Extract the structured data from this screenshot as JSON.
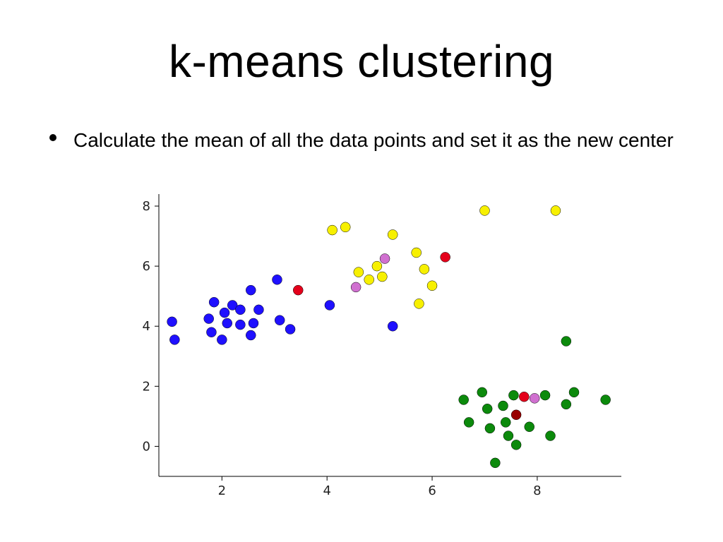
{
  "title": "k-means clustering",
  "bullet": "Calculate the mean of all the data points and set it as the new center",
  "chart": {
    "type": "scatter",
    "background_color": "#ffffff",
    "axis_color": "#000000",
    "tick_font_size": 18,
    "title_font_size": 64,
    "body_font_size": 28,
    "xlim": [
      0.8,
      9.6
    ],
    "ylim": [
      -1.0,
      8.4
    ],
    "xticks": [
      2,
      4,
      6,
      8
    ],
    "yticks": [
      0,
      2,
      4,
      6,
      8
    ],
    "marker_radius": 7,
    "marker_stroke": "#000000",
    "marker_stroke_width": 0.5,
    "colors": {
      "blue": "#1f10ff",
      "yellow": "#f7f000",
      "green": "#0c8a0c",
      "red": "#e4001b",
      "violet": "#d070d0",
      "darkred": "#990000"
    },
    "points": [
      {
        "x": 1.05,
        "y": 4.15,
        "c": "blue"
      },
      {
        "x": 1.1,
        "y": 3.55,
        "c": "blue"
      },
      {
        "x": 1.75,
        "y": 4.25,
        "c": "blue"
      },
      {
        "x": 1.8,
        "y": 3.8,
        "c": "blue"
      },
      {
        "x": 1.85,
        "y": 4.8,
        "c": "blue"
      },
      {
        "x": 2.0,
        "y": 3.55,
        "c": "blue"
      },
      {
        "x": 2.05,
        "y": 4.45,
        "c": "blue"
      },
      {
        "x": 2.1,
        "y": 4.1,
        "c": "blue"
      },
      {
        "x": 2.2,
        "y": 4.7,
        "c": "blue"
      },
      {
        "x": 2.35,
        "y": 4.05,
        "c": "blue"
      },
      {
        "x": 2.35,
        "y": 4.55,
        "c": "blue"
      },
      {
        "x": 2.55,
        "y": 3.7,
        "c": "blue"
      },
      {
        "x": 2.55,
        "y": 5.2,
        "c": "blue"
      },
      {
        "x": 2.6,
        "y": 4.1,
        "c": "blue"
      },
      {
        "x": 2.7,
        "y": 4.55,
        "c": "blue"
      },
      {
        "x": 3.05,
        "y": 5.55,
        "c": "blue"
      },
      {
        "x": 3.1,
        "y": 4.2,
        "c": "blue"
      },
      {
        "x": 3.3,
        "y": 3.9,
        "c": "blue"
      },
      {
        "x": 4.05,
        "y": 4.7,
        "c": "blue"
      },
      {
        "x": 5.25,
        "y": 4.0,
        "c": "blue"
      },
      {
        "x": 4.1,
        "y": 7.2,
        "c": "yellow"
      },
      {
        "x": 4.35,
        "y": 7.3,
        "c": "yellow"
      },
      {
        "x": 4.6,
        "y": 5.8,
        "c": "yellow"
      },
      {
        "x": 4.8,
        "y": 5.55,
        "c": "yellow"
      },
      {
        "x": 4.95,
        "y": 6.0,
        "c": "yellow"
      },
      {
        "x": 5.05,
        "y": 5.65,
        "c": "yellow"
      },
      {
        "x": 5.25,
        "y": 7.05,
        "c": "yellow"
      },
      {
        "x": 5.7,
        "y": 6.45,
        "c": "yellow"
      },
      {
        "x": 5.75,
        "y": 4.75,
        "c": "yellow"
      },
      {
        "x": 5.85,
        "y": 5.9,
        "c": "yellow"
      },
      {
        "x": 6.0,
        "y": 5.35,
        "c": "yellow"
      },
      {
        "x": 7.0,
        "y": 7.85,
        "c": "yellow"
      },
      {
        "x": 8.35,
        "y": 7.85,
        "c": "yellow"
      },
      {
        "x": 6.6,
        "y": 1.55,
        "c": "green"
      },
      {
        "x": 6.7,
        "y": 0.8,
        "c": "green"
      },
      {
        "x": 6.95,
        "y": 1.8,
        "c": "green"
      },
      {
        "x": 7.05,
        "y": 1.25,
        "c": "green"
      },
      {
        "x": 7.1,
        "y": 0.6,
        "c": "green"
      },
      {
        "x": 7.2,
        "y": -0.55,
        "c": "green"
      },
      {
        "x": 7.35,
        "y": 1.35,
        "c": "green"
      },
      {
        "x": 7.4,
        "y": 0.8,
        "c": "green"
      },
      {
        "x": 7.45,
        "y": 0.35,
        "c": "green"
      },
      {
        "x": 7.55,
        "y": 1.7,
        "c": "green"
      },
      {
        "x": 7.6,
        "y": 0.05,
        "c": "green"
      },
      {
        "x": 7.85,
        "y": 0.65,
        "c": "green"
      },
      {
        "x": 8.15,
        "y": 1.7,
        "c": "green"
      },
      {
        "x": 8.25,
        "y": 0.35,
        "c": "green"
      },
      {
        "x": 8.55,
        "y": 1.4,
        "c": "green"
      },
      {
        "x": 8.55,
        "y": 3.5,
        "c": "green"
      },
      {
        "x": 8.7,
        "y": 1.8,
        "c": "green"
      },
      {
        "x": 9.3,
        "y": 1.55,
        "c": "green"
      },
      {
        "x": 3.45,
        "y": 5.2,
        "c": "red"
      },
      {
        "x": 6.25,
        "y": 6.3,
        "c": "red"
      },
      {
        "x": 7.75,
        "y": 1.65,
        "c": "red"
      },
      {
        "x": 5.1,
        "y": 6.25,
        "c": "violet"
      },
      {
        "x": 4.55,
        "y": 5.3,
        "c": "violet"
      },
      {
        "x": 7.95,
        "y": 1.6,
        "c": "violet"
      },
      {
        "x": 7.6,
        "y": 1.05,
        "c": "darkred"
      }
    ]
  }
}
